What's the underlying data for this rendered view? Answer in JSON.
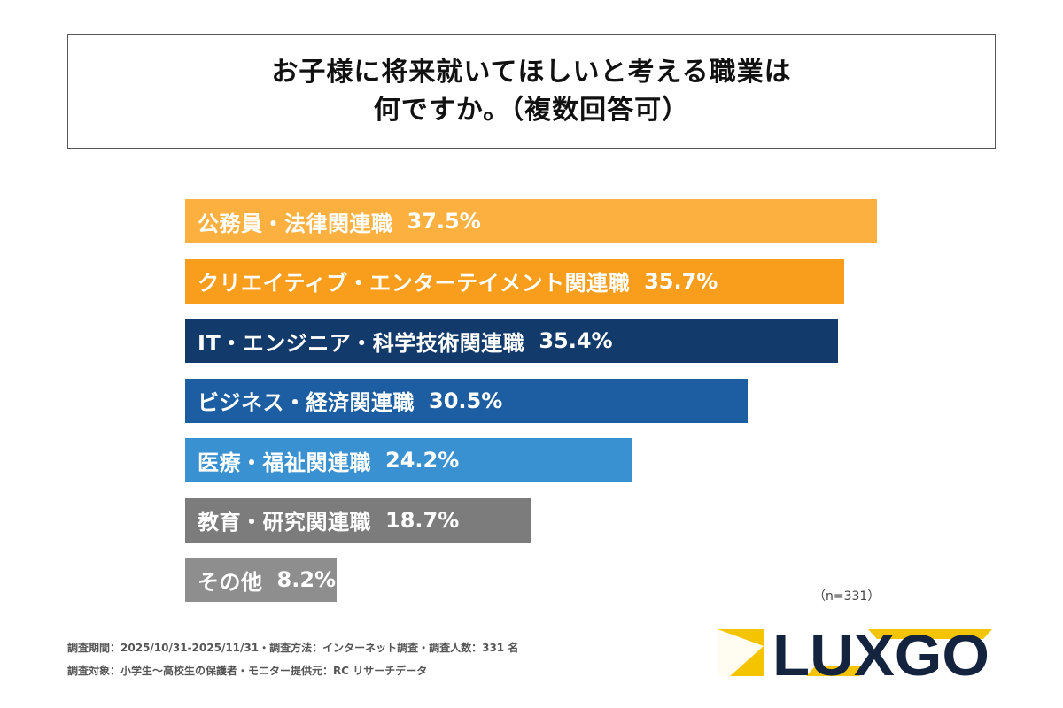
{
  "title_lines": [
    "お子様に将来就いてほしいと考える職業は",
    "何ですか。（複数回答可）"
  ],
  "chart_data": {
    "type": "bar",
    "orientation": "horizontal",
    "categories": [
      "公務員・法律関連職",
      "クリエイティブ・エンターテイメント関連職",
      "IT・エンジニア・科学技術関連職",
      "ビジネス・経済関連職",
      "医療・福祉関連職",
      "教育・研究関連職",
      "その他"
    ],
    "values": [
      37.5,
      35.7,
      35.4,
      30.5,
      24.2,
      18.7,
      8.2
    ],
    "value_labels": [
      "37.5%",
      "35.7%",
      "35.4%",
      "30.5%",
      "24.2%",
      "18.7%",
      "8.2%"
    ],
    "colors": [
      "#FBB03F",
      "#F89E1C",
      "#123A6A",
      "#1C5EA1",
      "#3A91D1",
      "#7C7C7C",
      "#8E8E8E"
    ],
    "unit": "%",
    "grid": false,
    "legend": "none"
  },
  "sample_note": "（n=331）",
  "footer": {
    "line1": "調査期間：2025/10/31-2025/11/31・調査方法：インターネット調査・調査人数：331 名",
    "line2": "調査対象：小学生〜高校生の保護者・モニター提供元：RC リサーチデータ"
  },
  "logo": {
    "text": "LUXGO",
    "colors": {
      "navy": "#14243F",
      "yellow": "#F5C400"
    }
  }
}
